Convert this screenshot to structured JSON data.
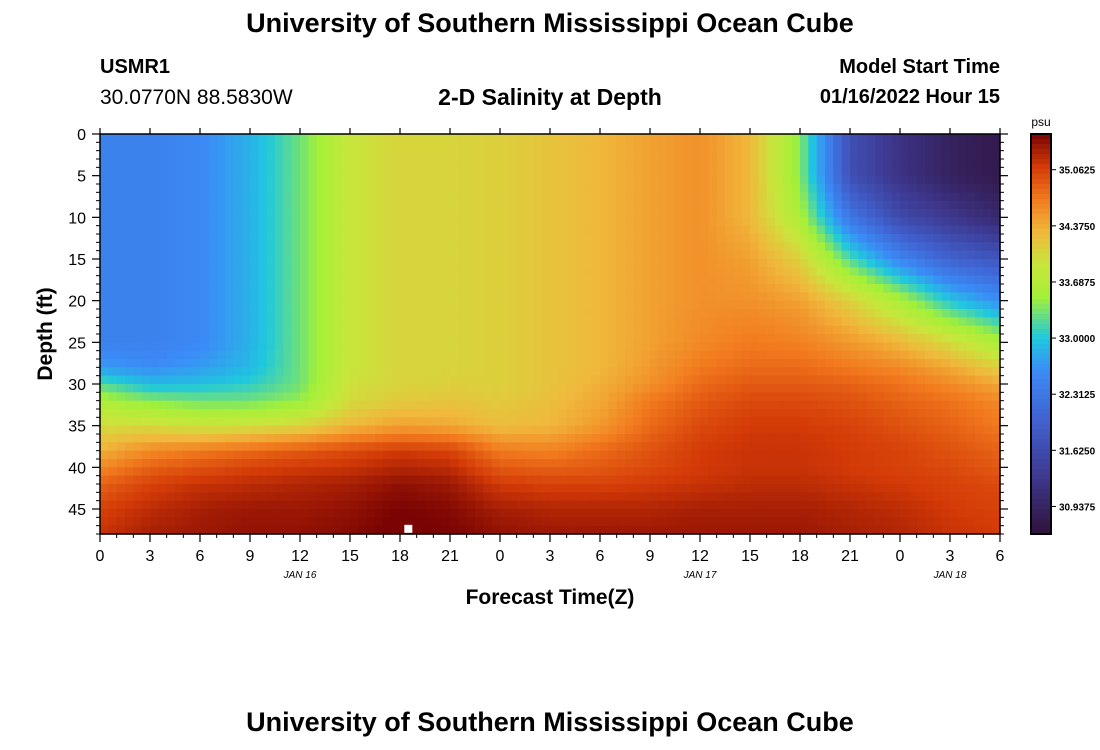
{
  "page": {
    "title": "University of Southern Mississippi Ocean Cube",
    "footer_title": "University of Southern Mississippi Ocean Cube"
  },
  "station": {
    "id": "USMR1",
    "coords": "30.0770N  88.5830W"
  },
  "model": {
    "label": "Model Start Time",
    "time": "01/16/2022 Hour 15"
  },
  "chart_data": {
    "type": "heatmap",
    "title": "2-D Salinity at Depth",
    "xlabel": "Forecast Time(Z)",
    "ylabel": "Depth (ft)",
    "x_range_hours": [
      0,
      54
    ],
    "x_ticks": [
      {
        "hour": 0,
        "label": "0"
      },
      {
        "hour": 3,
        "label": "3"
      },
      {
        "hour": 6,
        "label": "6"
      },
      {
        "hour": 9,
        "label": "9"
      },
      {
        "hour": 12,
        "label": "12"
      },
      {
        "hour": 15,
        "label": "15"
      },
      {
        "hour": 18,
        "label": "18"
      },
      {
        "hour": 21,
        "label": "21"
      },
      {
        "hour": 24,
        "label": "0"
      },
      {
        "hour": 27,
        "label": "3"
      },
      {
        "hour": 30,
        "label": "6"
      },
      {
        "hour": 33,
        "label": "9"
      },
      {
        "hour": 36,
        "label": "12"
      },
      {
        "hour": 39,
        "label": "15"
      },
      {
        "hour": 42,
        "label": "18"
      },
      {
        "hour": 45,
        "label": "21"
      },
      {
        "hour": 48,
        "label": "0"
      },
      {
        "hour": 51,
        "label": "3"
      },
      {
        "hour": 54,
        "label": "6"
      }
    ],
    "date_labels": [
      {
        "hour": 12,
        "label": "JAN 16"
      },
      {
        "hour": 36,
        "label": "JAN 17"
      },
      {
        "hour": 51,
        "label": "JAN 18"
      }
    ],
    "y_range_ft": [
      0,
      48
    ],
    "y_ticks": [
      0,
      5,
      10,
      15,
      20,
      25,
      30,
      35,
      40,
      45
    ],
    "colorbar": {
      "unit": "psu",
      "range": [
        30.6,
        35.5
      ],
      "ticks": [
        "35.0625",
        "34.3750",
        "33.6875",
        "33.0000",
        "32.3125",
        "31.6250",
        "30.9375"
      ],
      "tick_values": [
        35.0625,
        34.375,
        33.6875,
        33.0,
        32.3125,
        31.625,
        30.9375
      ]
    },
    "marker": {
      "hour": 18.5,
      "depth_ft": 47.5,
      "color": "#ffffff"
    },
    "grid": false,
    "times_hours": [
      0,
      3,
      6,
      9,
      12,
      15,
      18,
      21,
      24,
      27,
      30,
      33,
      36,
      39,
      42,
      45,
      48,
      51,
      54
    ],
    "depths_ft": [
      0,
      5,
      10,
      15,
      20,
      25,
      28,
      30,
      32,
      35,
      38,
      40,
      42,
      45,
      48
    ],
    "salinity_psu": [
      [
        32.45,
        32.45,
        32.55,
        32.85,
        33.3,
        33.9,
        34.05,
        34.05,
        34.1,
        34.2,
        34.3,
        34.45,
        34.55,
        34.3,
        33.4,
        31.7,
        31.2,
        30.9,
        30.75
      ],
      [
        32.45,
        32.45,
        32.55,
        32.85,
        33.3,
        33.9,
        34.05,
        34.05,
        34.1,
        34.2,
        34.3,
        34.45,
        34.55,
        34.3,
        33.4,
        31.7,
        31.2,
        30.9,
        30.75
      ],
      [
        32.45,
        32.45,
        32.55,
        32.85,
        33.3,
        33.9,
        34.05,
        34.05,
        34.1,
        34.2,
        34.3,
        34.45,
        34.55,
        34.3,
        33.6,
        32.3,
        31.6,
        31.3,
        31.0
      ],
      [
        32.45,
        32.45,
        32.55,
        32.85,
        33.3,
        33.9,
        34.05,
        34.05,
        34.1,
        34.2,
        34.3,
        34.45,
        34.55,
        34.45,
        34.1,
        33.2,
        32.5,
        32.0,
        31.8
      ],
      [
        32.45,
        32.45,
        32.55,
        32.85,
        33.3,
        33.9,
        34.05,
        34.05,
        34.1,
        34.2,
        34.3,
        34.45,
        34.55,
        34.55,
        34.45,
        34.1,
        33.6,
        33.0,
        32.6
      ],
      [
        32.45,
        32.45,
        32.55,
        32.85,
        33.3,
        33.9,
        34.05,
        34.05,
        34.1,
        34.2,
        34.3,
        34.45,
        34.6,
        34.7,
        34.65,
        34.5,
        34.3,
        34.0,
        33.6
      ],
      [
        32.7,
        32.6,
        32.7,
        32.9,
        33.3,
        33.9,
        34.05,
        34.05,
        34.1,
        34.2,
        34.3,
        34.5,
        34.7,
        34.8,
        34.8,
        34.7,
        34.6,
        34.4,
        34.1
      ],
      [
        33.2,
        32.9,
        32.95,
        33.05,
        33.3,
        33.95,
        34.05,
        34.1,
        34.1,
        34.2,
        34.35,
        34.55,
        34.8,
        34.9,
        34.9,
        34.85,
        34.75,
        34.6,
        34.4
      ],
      [
        33.6,
        33.4,
        33.3,
        33.3,
        33.45,
        34.0,
        34.15,
        34.2,
        34.15,
        34.25,
        34.4,
        34.7,
        34.9,
        35.0,
        35.0,
        34.95,
        34.85,
        34.75,
        34.6
      ],
      [
        34.0,
        34.0,
        33.9,
        33.95,
        34.05,
        34.3,
        34.45,
        34.4,
        34.25,
        34.3,
        34.5,
        34.8,
        35.0,
        35.1,
        35.1,
        35.05,
        34.95,
        34.85,
        34.7
      ],
      [
        34.35,
        34.6,
        34.7,
        34.8,
        34.9,
        35.0,
        35.1,
        35.05,
        34.7,
        34.65,
        34.8,
        34.95,
        35.1,
        35.15,
        35.15,
        35.1,
        35.05,
        34.95,
        34.85
      ],
      [
        34.6,
        34.85,
        34.95,
        35.05,
        35.1,
        35.15,
        35.25,
        35.2,
        34.9,
        34.85,
        34.9,
        35.0,
        35.1,
        35.15,
        35.15,
        35.1,
        35.05,
        35.0,
        34.9
      ],
      [
        34.85,
        35.05,
        35.15,
        35.2,
        35.25,
        35.3,
        35.4,
        35.35,
        35.1,
        35.05,
        35.05,
        35.1,
        35.15,
        35.2,
        35.2,
        35.15,
        35.1,
        35.05,
        35.0
      ],
      [
        35.05,
        35.2,
        35.3,
        35.35,
        35.35,
        35.4,
        35.5,
        35.45,
        35.3,
        35.25,
        35.25,
        35.25,
        35.3,
        35.3,
        35.3,
        35.25,
        35.2,
        35.1,
        35.05
      ],
      [
        35.15,
        35.3,
        35.35,
        35.4,
        35.4,
        35.45,
        35.55,
        35.5,
        35.4,
        35.35,
        35.35,
        35.35,
        35.35,
        35.35,
        35.35,
        35.3,
        35.25,
        35.15,
        35.1
      ]
    ],
    "colormap": {
      "values": [
        30.6,
        31.3,
        32.0,
        32.6,
        33.0,
        33.5,
        33.9,
        34.3,
        34.7,
        35.1,
        35.5
      ],
      "colors": [
        "#30123b",
        "#3e388f",
        "#4062d0",
        "#3b8cf7",
        "#1fc8de",
        "#a3f038",
        "#c8e63c",
        "#f0b83c",
        "#f27a1e",
        "#d33a07",
        "#7a0403"
      ]
    }
  }
}
